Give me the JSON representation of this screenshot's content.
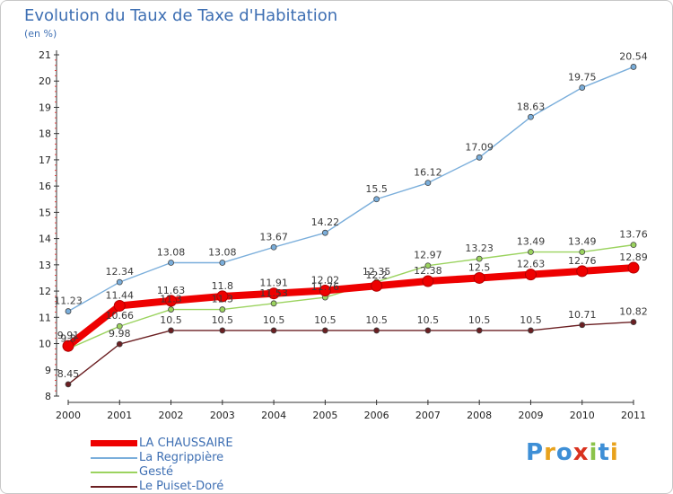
{
  "title": "Evolution du Taux de Taxe d'Habitation",
  "unit_label": "(en %)",
  "logo_text": "Proxiti",
  "logo_colors": [
    "#3e8fd6",
    "#e8a21d",
    "#3e8fd6",
    "#d9321f",
    "#8bc34a",
    "#3e8fd6",
    "#e8a21d"
  ],
  "chart_data": {
    "type": "line",
    "title": "Evolution du Taux de Taxe d'Habitation",
    "ylabel": "(en %)",
    "xlabel": "",
    "x": [
      "2000",
      "2001",
      "2002",
      "2003",
      "2004",
      "2005",
      "2006",
      "2007",
      "2008",
      "2009",
      "2010",
      "2011"
    ],
    "ylim": [
      8,
      21
    ],
    "yticks": [
      "8",
      "9",
      "10",
      "11",
      "12",
      "13",
      "14",
      "15",
      "16",
      "17",
      "18",
      "19",
      "20",
      "21"
    ],
    "grid": false,
    "legend_position": "bottom-left",
    "series": [
      {
        "name": "Le Puiset-Doré",
        "color": "#6b1f22",
        "values": [
          8.45,
          9.98,
          10.5,
          10.5,
          10.5,
          10.5,
          10.5,
          10.5,
          10.5,
          10.5,
          10.71,
          10.82
        ],
        "labels": [
          "8.45",
          "9.98",
          "10.5",
          "10.5",
          "10.5",
          "10.5",
          "10.5",
          "10.5",
          "10.5",
          "10.5",
          "10.71",
          "10.82"
        ]
      },
      {
        "name": "Gesté",
        "color": "#9bd35f",
        "values": [
          9.8,
          10.66,
          11.3,
          11.3,
          11.53,
          11.76,
          12.35,
          12.97,
          13.23,
          13.49,
          13.49,
          13.76
        ],
        "labels": [
          "9.8",
          "10.66",
          "11.3",
          "11.3",
          "11.53",
          "11.76",
          "12.35",
          "12.97",
          "13.23",
          "13.49",
          "13.49",
          "13.76"
        ]
      },
      {
        "name": "La Regrippière",
        "color": "#7aaedb",
        "values": [
          11.23,
          12.34,
          13.08,
          13.08,
          13.67,
          14.22,
          15.5,
          16.12,
          17.09,
          18.63,
          19.75,
          20.54
        ],
        "labels": [
          "11.23",
          "12.34",
          "13.08",
          "13.08",
          "13.67",
          "14.22",
          "15.5",
          "16.12",
          "17.09",
          "18.63",
          "19.75",
          "20.54"
        ]
      },
      {
        "name": "LA CHAUSSAIRE",
        "color": "#ee0000",
        "values": [
          9.91,
          11.44,
          11.63,
          11.8,
          11.91,
          12.02,
          12.2,
          12.38,
          12.5,
          12.63,
          12.76,
          12.89
        ],
        "labels": [
          "9.91",
          "11.44",
          "11.63",
          "11.8",
          "11.91",
          "12.02",
          "12.2",
          "12.38",
          "12.5",
          "12.63",
          "12.76",
          "12.89"
        ]
      }
    ],
    "legend_order": [
      "LA CHAUSSAIRE",
      "La Regrippière",
      "Gesté",
      "Le Puiset-Doré"
    ]
  }
}
